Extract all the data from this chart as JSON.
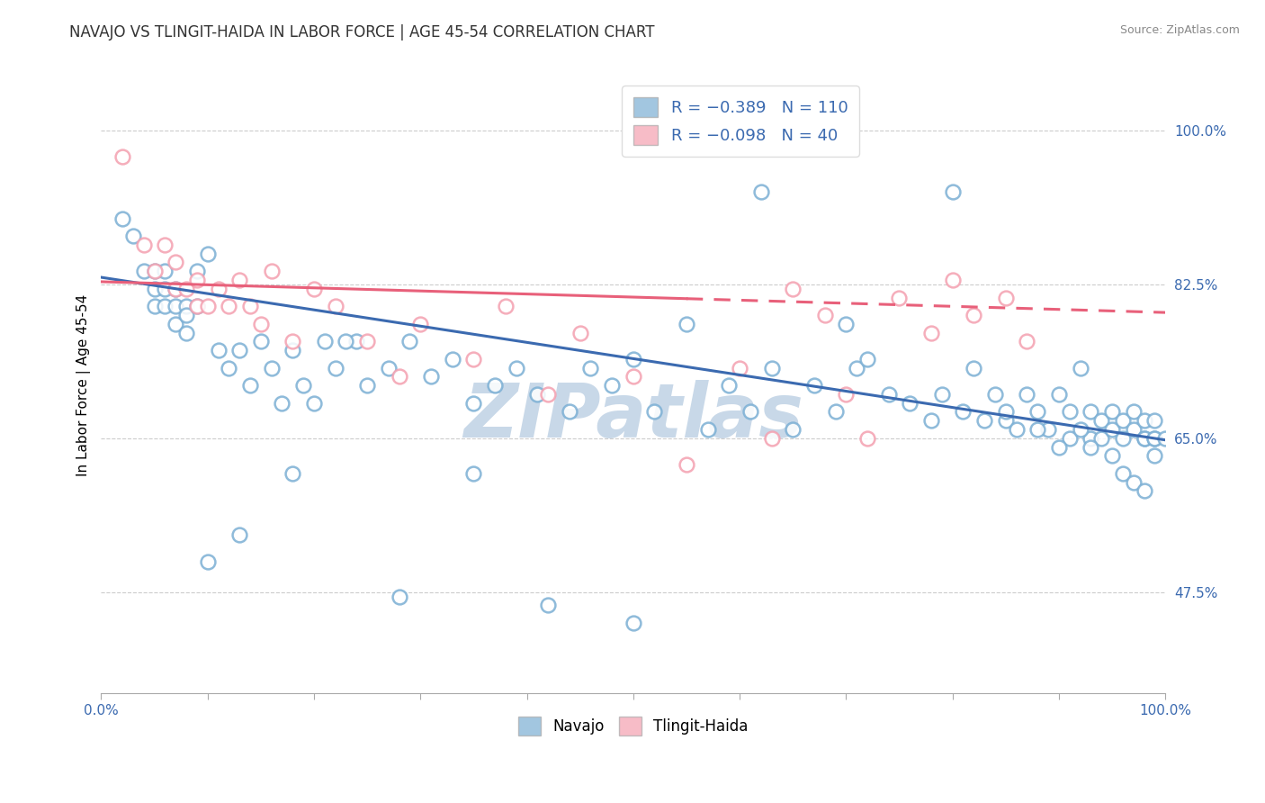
{
  "title": "NAVAJO VS TLINGIT-HAIDA IN LABOR FORCE | AGE 45-54 CORRELATION CHART",
  "source_text": "Source: ZipAtlas.com",
  "ylabel": "In Labor Force | Age 45-54",
  "xlim": [
    0.0,
    1.0
  ],
  "ylim": [
    0.36,
    1.06
  ],
  "yticks": [
    0.475,
    0.65,
    0.825,
    1.0
  ],
  "ytick_labels": [
    "47.5%",
    "65.0%",
    "82.5%",
    "100.0%"
  ],
  "xtick_labels": [
    "0.0%",
    "100.0%"
  ],
  "xticks": [
    0.0,
    1.0
  ],
  "navajo_R": -0.389,
  "navajo_N": 110,
  "tlingit_R": -0.098,
  "tlingit_N": 40,
  "navajo_color": "#7BAFD4",
  "tlingit_color": "#F4A0B0",
  "navajo_edge_color": "#5B8FC4",
  "tlingit_edge_color": "#E87090",
  "navajo_line_color": "#3B6AB0",
  "tlingit_line_color": "#E8607A",
  "background_color": "#FFFFFF",
  "grid_color": "#CCCCCC",
  "watermark": "ZIPatlas",
  "watermark_color": "#C8D8E8",
  "navajo_x": [
    0.02,
    0.03,
    0.04,
    0.05,
    0.05,
    0.05,
    0.06,
    0.06,
    0.06,
    0.07,
    0.07,
    0.07,
    0.08,
    0.08,
    0.08,
    0.09,
    0.09,
    0.1,
    0.11,
    0.12,
    0.13,
    0.14,
    0.15,
    0.16,
    0.17,
    0.18,
    0.19,
    0.2,
    0.21,
    0.22,
    0.24,
    0.25,
    0.27,
    0.29,
    0.31,
    0.33,
    0.35,
    0.37,
    0.39,
    0.41,
    0.44,
    0.46,
    0.48,
    0.5,
    0.52,
    0.55,
    0.57,
    0.59,
    0.61,
    0.63,
    0.65,
    0.67,
    0.69,
    0.71,
    0.72,
    0.74,
    0.76,
    0.78,
    0.79,
    0.81,
    0.82,
    0.83,
    0.84,
    0.85,
    0.86,
    0.87,
    0.88,
    0.89,
    0.9,
    0.91,
    0.91,
    0.92,
    0.93,
    0.93,
    0.94,
    0.94,
    0.95,
    0.95,
    0.96,
    0.96,
    0.97,
    0.97,
    0.98,
    0.98,
    0.98,
    0.99,
    0.99,
    0.99,
    0.99,
    1.0,
    0.1,
    0.13,
    0.18,
    0.23,
    0.28,
    0.35,
    0.42,
    0.5,
    0.62,
    0.7,
    0.8,
    0.85,
    0.88,
    0.9,
    0.92,
    0.93,
    0.95,
    0.96,
    0.97,
    0.98
  ],
  "navajo_y": [
    0.9,
    0.88,
    0.84,
    0.84,
    0.82,
    0.8,
    0.84,
    0.82,
    0.8,
    0.82,
    0.8,
    0.78,
    0.8,
    0.79,
    0.77,
    0.84,
    0.8,
    0.86,
    0.75,
    0.73,
    0.75,
    0.71,
    0.76,
    0.73,
    0.69,
    0.75,
    0.71,
    0.69,
    0.76,
    0.73,
    0.76,
    0.71,
    0.73,
    0.76,
    0.72,
    0.74,
    0.69,
    0.71,
    0.73,
    0.7,
    0.68,
    0.73,
    0.71,
    0.74,
    0.68,
    0.78,
    0.66,
    0.71,
    0.68,
    0.73,
    0.66,
    0.71,
    0.68,
    0.73,
    0.74,
    0.7,
    0.69,
    0.67,
    0.7,
    0.68,
    0.73,
    0.67,
    0.7,
    0.67,
    0.66,
    0.7,
    0.68,
    0.66,
    0.7,
    0.68,
    0.65,
    0.73,
    0.68,
    0.65,
    0.67,
    0.65,
    0.68,
    0.66,
    0.67,
    0.65,
    0.66,
    0.68,
    0.65,
    0.67,
    0.65,
    0.65,
    0.67,
    0.65,
    0.63,
    0.65,
    0.51,
    0.54,
    0.61,
    0.76,
    0.47,
    0.61,
    0.46,
    0.44,
    0.93,
    0.78,
    0.93,
    0.68,
    0.66,
    0.64,
    0.66,
    0.64,
    0.63,
    0.61,
    0.6,
    0.59
  ],
  "tlingit_x": [
    0.02,
    0.04,
    0.05,
    0.06,
    0.07,
    0.07,
    0.08,
    0.09,
    0.09,
    0.1,
    0.11,
    0.12,
    0.13,
    0.14,
    0.15,
    0.16,
    0.18,
    0.2,
    0.22,
    0.25,
    0.28,
    0.3,
    0.35,
    0.38,
    0.42,
    0.45,
    0.5,
    0.55,
    0.6,
    0.63,
    0.65,
    0.68,
    0.7,
    0.72,
    0.75,
    0.78,
    0.8,
    0.82,
    0.85,
    0.87
  ],
  "tlingit_y": [
    0.97,
    0.87,
    0.84,
    0.87,
    0.85,
    0.82,
    0.82,
    0.83,
    0.8,
    0.8,
    0.82,
    0.8,
    0.83,
    0.8,
    0.78,
    0.84,
    0.76,
    0.82,
    0.8,
    0.76,
    0.72,
    0.78,
    0.74,
    0.8,
    0.7,
    0.77,
    0.72,
    0.62,
    0.73,
    0.65,
    0.82,
    0.79,
    0.7,
    0.65,
    0.81,
    0.77,
    0.83,
    0.79,
    0.81,
    0.76
  ],
  "nav_line_y0": 0.833,
  "nav_line_y1": 0.648,
  "tli_line_y0": 0.828,
  "tli_line_y1": 0.793
}
